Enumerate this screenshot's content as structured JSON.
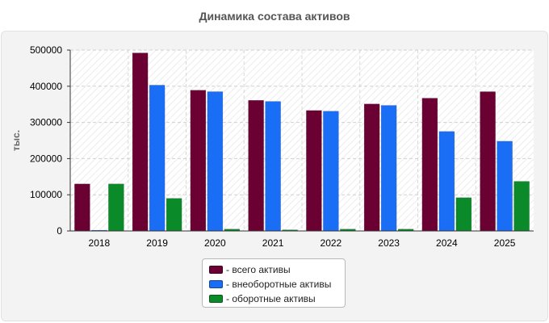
{
  "page_title": "Динамика состава активов",
  "chart_data": {
    "type": "bar",
    "title": "Динамика состава активов",
    "ylabel": "тыс.",
    "xlabel": "",
    "categories": [
      "2018",
      "2019",
      "2020",
      "2021",
      "2022",
      "2023",
      "2024",
      "2025"
    ],
    "ylim": [
      0,
      500000
    ],
    "yticks": [
      "0",
      "100000",
      "200000",
      "300000",
      "400000",
      "500000"
    ],
    "grid": true,
    "legend_position": "bottom",
    "series": [
      {
        "name": "- всего активы",
        "color": "#6b0033",
        "values": [
          130000,
          492000,
          389000,
          361000,
          333000,
          351000,
          367000,
          385000
        ]
      },
      {
        "name": "- внеоборотные активы",
        "color": "#1a6ef5",
        "values": [
          2000,
          403000,
          385000,
          358000,
          331000,
          347000,
          275000,
          248000
        ]
      },
      {
        "name": "- оборотные активы",
        "color": "#0b8a2a",
        "values": [
          130000,
          90000,
          5000,
          3000,
          5000,
          5000,
          92000,
          137000
        ]
      }
    ]
  }
}
